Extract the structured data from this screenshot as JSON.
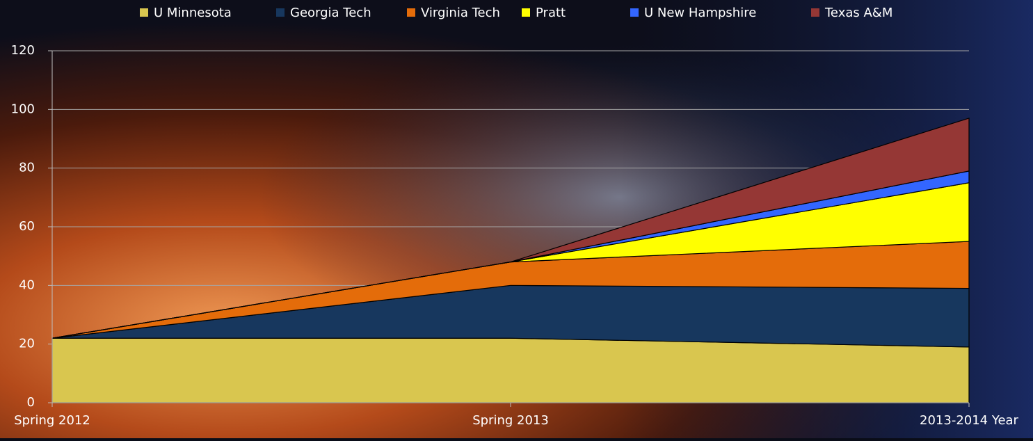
{
  "chart_data": {
    "type": "stacked_area",
    "categories": [
      "Spring 2012",
      "Spring 2013",
      "2013-2014 Year"
    ],
    "series": [
      {
        "name": "U Minnesota",
        "color": "#d9c64f",
        "values": [
          22,
          22,
          19
        ]
      },
      {
        "name": "Georgia Tech",
        "color": "#17375e",
        "values": [
          0,
          18,
          20
        ]
      },
      {
        "name": "Virginia Tech",
        "color": "#e46c0a",
        "values": [
          0,
          8,
          16
        ]
      },
      {
        "name": "Pratt",
        "color": "#ffff00",
        "values": [
          0,
          0,
          20
        ]
      },
      {
        "name": "U New Hampshire",
        "color": "#3366ff",
        "values": [
          0,
          0,
          4
        ]
      },
      {
        "name": "Texas A&M",
        "color": "#953735",
        "values": [
          0,
          0,
          18
        ]
      }
    ],
    "ylim": [
      0,
      120
    ],
    "yticks": [
      0,
      20,
      40,
      60,
      80,
      100,
      120
    ],
    "grid": true
  }
}
